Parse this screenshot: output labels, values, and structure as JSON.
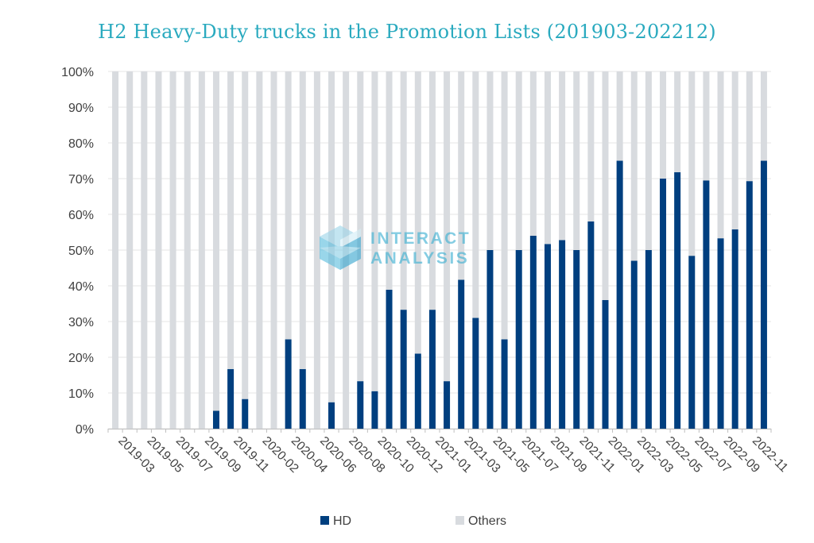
{
  "chart_data": {
    "type": "bar",
    "stacked": true,
    "title": "H2 Heavy-Duty trucks in the Promotion Lists (201903-202212)",
    "xlabel": "",
    "ylabel": "",
    "ylim": [
      0,
      100
    ],
    "y_ticks": [
      "0%",
      "10%",
      "20%",
      "30%",
      "40%",
      "50%",
      "60%",
      "70%",
      "80%",
      "90%",
      "100%"
    ],
    "x_tick_labels": [
      "2019-03",
      "2019-05",
      "2019-07",
      "2019-09",
      "2019-11",
      "2020-02",
      "2020-04",
      "2020-06",
      "2020-08",
      "2020-10",
      "2020-12",
      "2021-01",
      "2021-03",
      "2021-05",
      "2021-07",
      "2021-09",
      "2021-11",
      "2022-01",
      "2022-03",
      "2022-05",
      "2022-07",
      "2022-09",
      "2022-11"
    ],
    "bar_count": 46,
    "legend": {
      "position": "bottom"
    },
    "grid": true,
    "series": [
      {
        "name": "HD",
        "color": "#003f7f",
        "values": [
          0,
          0,
          0,
          0,
          0,
          0,
          0,
          5,
          16.7,
          8.3,
          0,
          0,
          25,
          16.7,
          0,
          7.4,
          0,
          13.3,
          10.5,
          38.9,
          33.3,
          21,
          33.3,
          13.3,
          41.7,
          31,
          50,
          25,
          50,
          54,
          51.7,
          52.8,
          50,
          58,
          36,
          75,
          47,
          50,
          70,
          71.8,
          48.4,
          69.5,
          53.3,
          55.8,
          69.3,
          75
        ]
      },
      {
        "name": "Others",
        "color": "#d8dbdf",
        "values": [
          100,
          100,
          100,
          100,
          100,
          100,
          100,
          95,
          83.3,
          91.7,
          100,
          100,
          75,
          83.3,
          100,
          92.6,
          100,
          86.7,
          89.5,
          61.1,
          66.7,
          79,
          66.7,
          86.7,
          58.3,
          69,
          50,
          75,
          50,
          46,
          48.3,
          47.2,
          50,
          42,
          64,
          25,
          53,
          50,
          30,
          28.2,
          51.6,
          30.5,
          46.7,
          44.2,
          30.7,
          25
        ]
      }
    ]
  },
  "watermark": {
    "line1": "INTERACT",
    "line2": "ANALYSIS",
    "color": "#3bb0d2",
    "icon": "cube-logo-icon"
  }
}
